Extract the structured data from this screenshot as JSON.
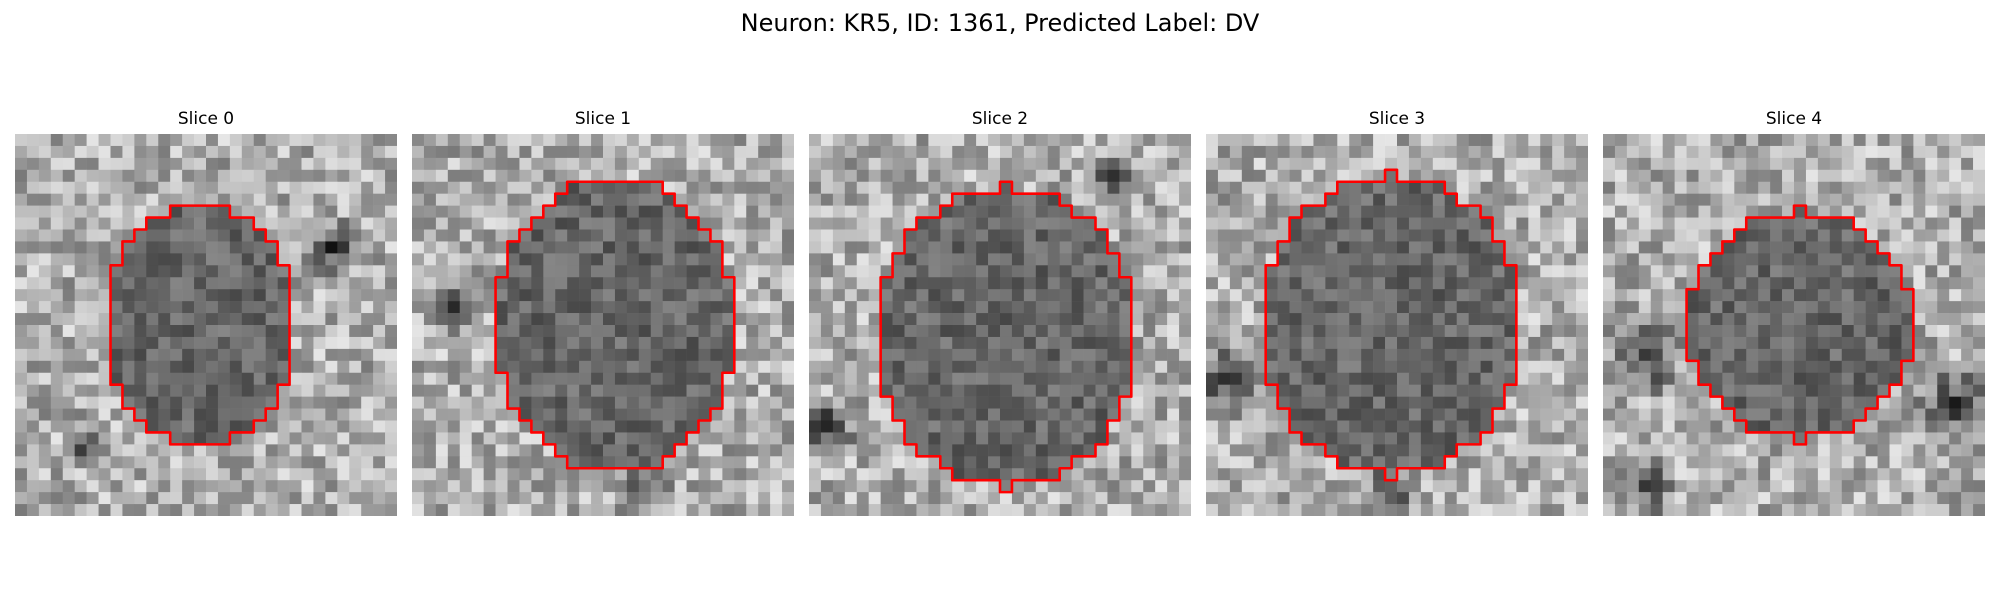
{
  "figure": {
    "title": "Neuron: KR5, ID: 1361, Predicted Label: DV"
  },
  "style": {
    "contour_color": "#ff0000"
  },
  "panels": [
    {
      "title": "Slice 0"
    },
    {
      "title": "Slice 1"
    },
    {
      "title": "Slice 2"
    },
    {
      "title": "Slice 3"
    },
    {
      "title": "Slice 4"
    }
  ]
}
